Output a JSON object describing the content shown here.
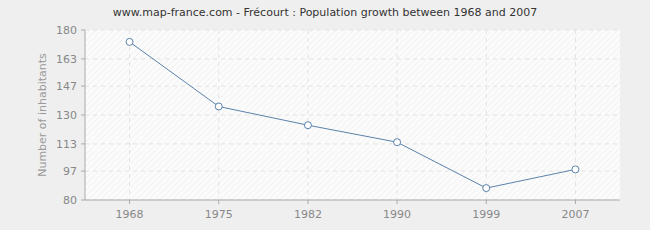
{
  "chart_data": {
    "type": "line",
    "title": "www.map-france.com - Frécourt : Population growth between 1968 and 2007",
    "y_label": "Number of inhabitants",
    "categories": [
      "1968",
      "1975",
      "1982",
      "1990",
      "1999",
      "2007"
    ],
    "values": [
      173,
      135,
      124,
      114,
      87,
      98
    ],
    "color": "#5b82ab",
    "marker": "circle",
    "ylim": [
      80,
      180
    ],
    "yticks": [
      80,
      97,
      113,
      130,
      147,
      163,
      180
    ],
    "grid": true
  }
}
